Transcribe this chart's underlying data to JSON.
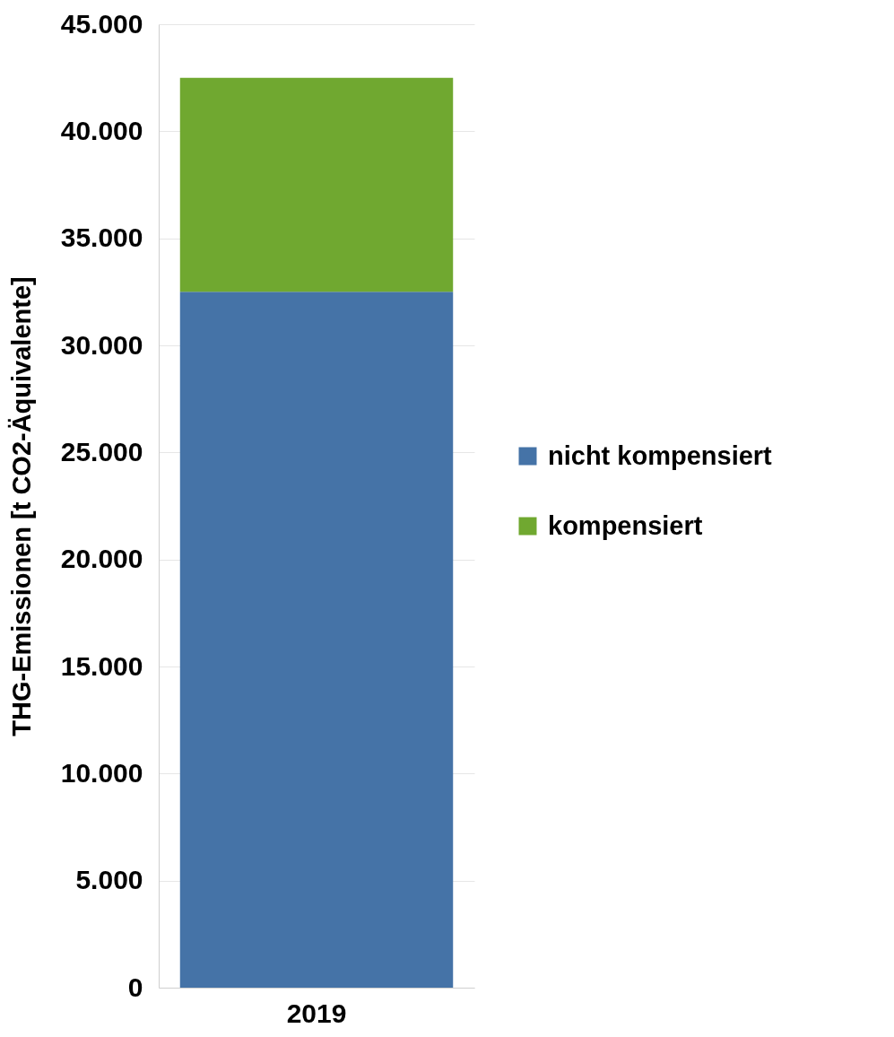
{
  "chart_data": {
    "type": "bar",
    "stacked": true,
    "ylabel": "THG-Emissionen [t CO2-Äquivalente]",
    "categories": [
      "2019"
    ],
    "series": [
      {
        "name": "nicht kompensiert",
        "color": "#4573a7",
        "values": [
          32500
        ]
      },
      {
        "name": "kompensiert",
        "color": "#70a830",
        "values": [
          10000
        ]
      }
    ],
    "ylim": [
      0,
      45000
    ],
    "yticks": [
      {
        "value": 0,
        "label": "0"
      },
      {
        "value": 5000,
        "label": "5.000"
      },
      {
        "value": 10000,
        "label": "10.000"
      },
      {
        "value": 15000,
        "label": "15.000"
      },
      {
        "value": 20000,
        "label": "20.000"
      },
      {
        "value": 25000,
        "label": "25.000"
      },
      {
        "value": 30000,
        "label": "30.000"
      },
      {
        "value": 35000,
        "label": "35.000"
      },
      {
        "value": 40000,
        "label": "40.000"
      },
      {
        "value": 45000,
        "label": "45.000"
      }
    ],
    "grid": "y",
    "legend": "right"
  }
}
